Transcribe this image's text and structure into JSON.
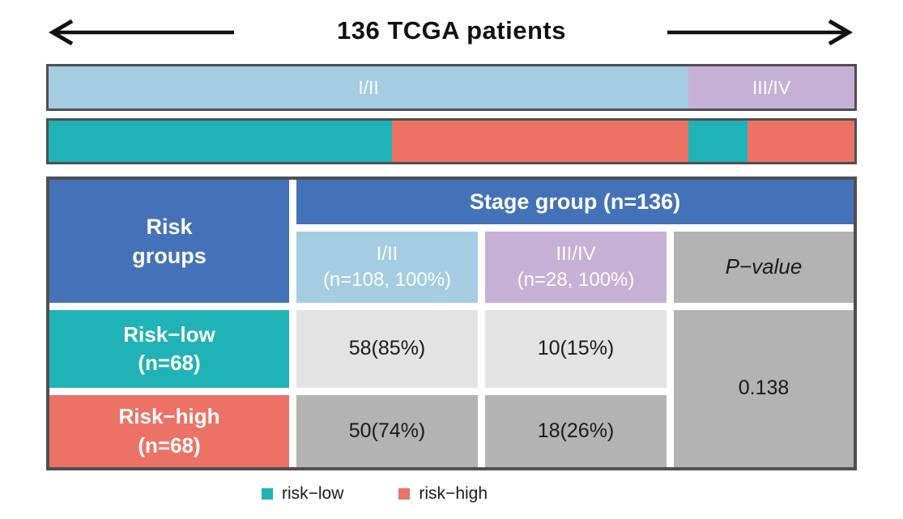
{
  "title": "136 TCGA patients",
  "colors": {
    "stage_1_2": "#a5cde1",
    "stage_3_4": "#c7b0d6",
    "risk_low": "#1fb2b7",
    "risk_high": "#ed7266",
    "header_blue": "#4472b9",
    "cell_gray": "#b3b3b3",
    "cell_light_gray": "#e3e3e3",
    "border_gray": "#4f4f52"
  },
  "bars": {
    "stage": {
      "segments": [
        {
          "label": "I/II",
          "pct": 79.4,
          "color": "stage_1_2",
          "name": "stage-1-2-segment"
        },
        {
          "label": "III/IV",
          "pct": 20.6,
          "color": "stage_3_4",
          "name": "stage-3-4-segment"
        }
      ]
    },
    "risk": {
      "segments": [
        {
          "label": "",
          "pct": 42.65,
          "color": "risk_low",
          "name": "risk-low-in-stage-1-2-segment"
        },
        {
          "label": "",
          "pct": 36.76,
          "color": "risk_high",
          "name": "risk-high-in-stage-1-2-segment"
        },
        {
          "label": "",
          "pct": 7.35,
          "color": "risk_low",
          "name": "risk-low-in-stage-3-4-segment"
        },
        {
          "label": "",
          "pct": 13.24,
          "color": "risk_high",
          "name": "risk-high-in-stage-3-4-segment"
        }
      ]
    }
  },
  "table": {
    "risk_groups_header": {
      "line1": "Risk",
      "line2": "groups"
    },
    "stage_group_header": "Stage group (n=136)",
    "stage12_header": {
      "line1": "I/II",
      "line2": "(n=108, 100%)"
    },
    "stage34_header": {
      "line1": "III/IV",
      "line2": "(n=28, 100%)"
    },
    "pvalue_header": "P−value",
    "risk_low_label": {
      "line1": "Risk−low",
      "line2": "(n=68)"
    },
    "risk_high_label": {
      "line1": "Risk−high",
      "line2": "(n=68)"
    },
    "values": {
      "low_stage12": "58(85%)",
      "low_stage34": "10(15%)",
      "high_stage12": "50(74%)",
      "high_stage34": "18(26%)",
      "p_value": "0.138"
    }
  },
  "legend": {
    "items": [
      {
        "label": "risk−low",
        "color": "risk_low"
      },
      {
        "label": "risk−high",
        "color": "risk_high"
      }
    ]
  },
  "chart_data": [
    {
      "type": "bar",
      "subtype": "horizontal-stacked",
      "title": "Stage distribution of 136 TCGA patients",
      "categories": [
        "I/II",
        "III/IV"
      ],
      "values": [
        108,
        28
      ],
      "total": 136,
      "colors": [
        "#a5cde1",
        "#c7b0d6"
      ],
      "legend_position": "none"
    },
    {
      "type": "bar",
      "subtype": "horizontal-stacked",
      "title": "Risk group ordering within stage groups",
      "series": [
        {
          "name": "risk-low within I/II",
          "value": 58,
          "color": "#1fb2b7"
        },
        {
          "name": "risk-high within I/II",
          "value": 50,
          "color": "#ed7266"
        },
        {
          "name": "risk-low within III/IV",
          "value": 10,
          "color": "#1fb2b7"
        },
        {
          "name": "risk-high within III/IV",
          "value": 18,
          "color": "#ed7266"
        }
      ],
      "total": 136,
      "legend_position": "bottom",
      "legend_entries": [
        "risk−low",
        "risk−high"
      ]
    },
    {
      "type": "table",
      "title": "Risk groups vs Stage group (n=136)",
      "columns": [
        "Risk groups",
        "I/II (n=108, 100%)",
        "III/IV (n=28, 100%)",
        "P−value"
      ],
      "rows": [
        [
          "Risk−low (n=68)",
          "58(85%)",
          "10(15%)",
          "0.138"
        ],
        [
          "Risk−high (n=68)",
          "50(74%)",
          "18(26%)",
          "0.138"
        ]
      ],
      "p_value": 0.138
    }
  ]
}
